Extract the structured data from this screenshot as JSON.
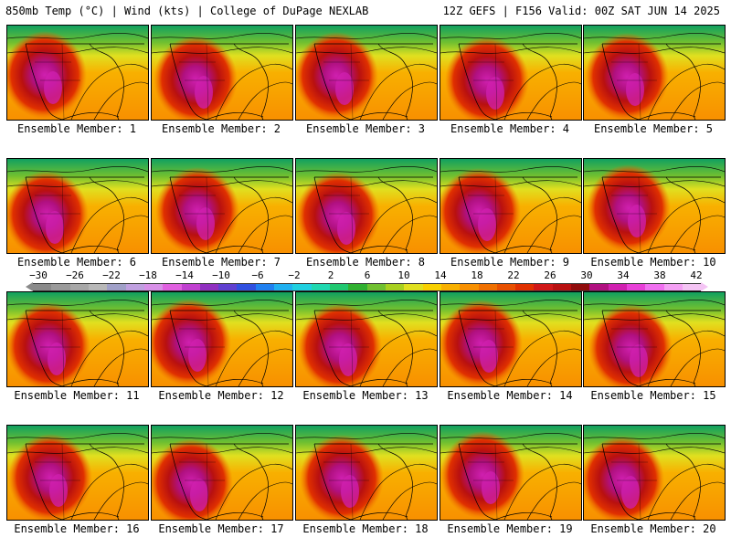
{
  "header": {
    "left": "850mb Temp (°C) | Wind (kts) | College of DuPage NEXLAB",
    "right": "12Z GEFS | F156 Valid: 00Z SAT JUN 14 2025"
  },
  "members": [
    "Ensemble Member: 1",
    "Ensemble Member: 2",
    "Ensemble Member: 3",
    "Ensemble Member: 4",
    "Ensemble Member: 5",
    "Ensemble Member: 6",
    "Ensemble Member: 7",
    "Ensemble Member: 8",
    "Ensemble Member: 9",
    "Ensemble Member: 10",
    "Ensemble Member: 11",
    "Ensemble Member: 12",
    "Ensemble Member: 13",
    "Ensemble Member: 14",
    "Ensemble Member: 15",
    "Ensemble Member: 16",
    "Ensemble Member: 17",
    "Ensemble Member: 18",
    "Ensemble Member: 19",
    "Ensemble Member: 20"
  ],
  "colorbar": {
    "ticks": [
      "−30",
      "−26",
      "−22",
      "−18",
      "−14",
      "−10",
      "−6",
      "−2",
      "2",
      "6",
      "10",
      "14",
      "18",
      "22",
      "26",
      "30",
      "34",
      "38",
      "42"
    ],
    "colors": [
      "#8a8a8a",
      "#9a9a9a",
      "#a8a8a8",
      "#b8b8b8",
      "#a0a0c8",
      "#c0a0e0",
      "#d890e8",
      "#e060e0",
      "#c040d0",
      "#9030c0",
      "#6040d0",
      "#3050e0",
      "#2080f0",
      "#20b0f0",
      "#20d0e0",
      "#20d8b0",
      "#20c870",
      "#30b030",
      "#70c030",
      "#a8d020",
      "#e0e020",
      "#f8d000",
      "#f8b000",
      "#f89000",
      "#f07000",
      "#e85000",
      "#e03000",
      "#d01818",
      "#b81010",
      "#900c0c",
      "#b01080",
      "#d020b0",
      "#e840d8",
      "#f070f0",
      "#f4a0f4",
      "#f4c4f4"
    ]
  }
}
